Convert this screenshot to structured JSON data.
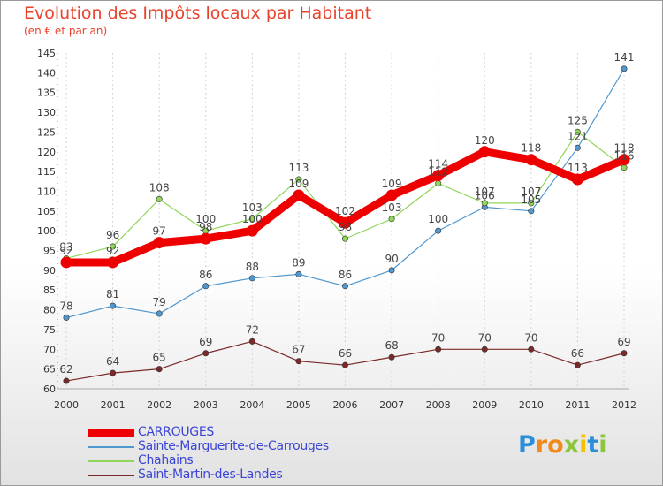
{
  "title": "Evolution des Impôts locaux par Habitant",
  "subtitle": "(en € et par an)",
  "logo": {
    "text": "Proxiti",
    "letters": [
      {
        "ch": "P",
        "color": "#2a8fd8"
      },
      {
        "ch": "r",
        "color": "#f08a1d"
      },
      {
        "ch": "o",
        "color": "#f08a1d"
      },
      {
        "ch": "x",
        "color": "#8cc63f"
      },
      {
        "ch": "i",
        "color": "#f2c200"
      },
      {
        "ch": "t",
        "color": "#2a8fd8"
      },
      {
        "ch": "i",
        "color": "#8cc63f"
      }
    ]
  },
  "chart_data": {
    "type": "line",
    "title": "Evolution des Impôts locaux par Habitant",
    "subtitle": "(en € et par an)",
    "x": [
      "2000",
      "2001",
      "2002",
      "2003",
      "2004",
      "2005",
      "2006",
      "2007",
      "2008",
      "2009",
      "2010",
      "2011",
      "2012"
    ],
    "ylim": [
      60,
      145
    ],
    "yticks": [
      60,
      65,
      70,
      75,
      80,
      85,
      90,
      95,
      100,
      105,
      110,
      115,
      120,
      125,
      130,
      135,
      140,
      145
    ],
    "grid": "vertical dashed",
    "legend_position": "bottom-left",
    "series": [
      {
        "name": "CARROUGES",
        "color": "#ee0000",
        "width": "thick",
        "values": [
          92,
          92,
          97,
          98,
          100,
          109,
          102,
          109,
          114,
          120,
          118,
          113,
          118
        ],
        "labels": [
          "92",
          "92",
          "97",
          "98",
          "100",
          "109",
          "102",
          "109",
          "114",
          "120",
          "118",
          "113",
          "118"
        ]
      },
      {
        "name": "Sainte-Marguerite-de-Carrouges",
        "color": "#4f97cf",
        "width": "thin",
        "values": [
          78,
          81,
          79,
          86,
          88,
          89,
          86,
          90,
          100,
          106,
          105,
          121,
          141
        ],
        "labels": [
          "78",
          "81",
          "79",
          "86",
          "88",
          "89",
          "86",
          "90",
          "100",
          "106",
          "105",
          "121",
          "141"
        ]
      },
      {
        "name": "Chahains",
        "color": "#8fd65a",
        "width": "thin",
        "values": [
          93,
          96,
          108,
          100,
          103,
          113,
          98,
          103,
          112,
          107,
          107,
          125,
          116
        ],
        "labels": [
          "93",
          "96",
          "108",
          "100",
          "103",
          "113",
          "98",
          "103",
          "112",
          "107",
          "107",
          "125",
          "116"
        ]
      },
      {
        "name": "Saint-Martin-des-Landes",
        "color": "#7a2a2a",
        "width": "thin",
        "values": [
          62,
          64,
          65,
          69,
          72,
          67,
          66,
          68,
          70,
          70,
          70,
          66,
          69
        ],
        "labels": [
          "62",
          "64",
          "65",
          "69",
          "72",
          "67",
          "66",
          "68",
          "70",
          "70",
          "70",
          "66",
          "69"
        ]
      }
    ]
  }
}
